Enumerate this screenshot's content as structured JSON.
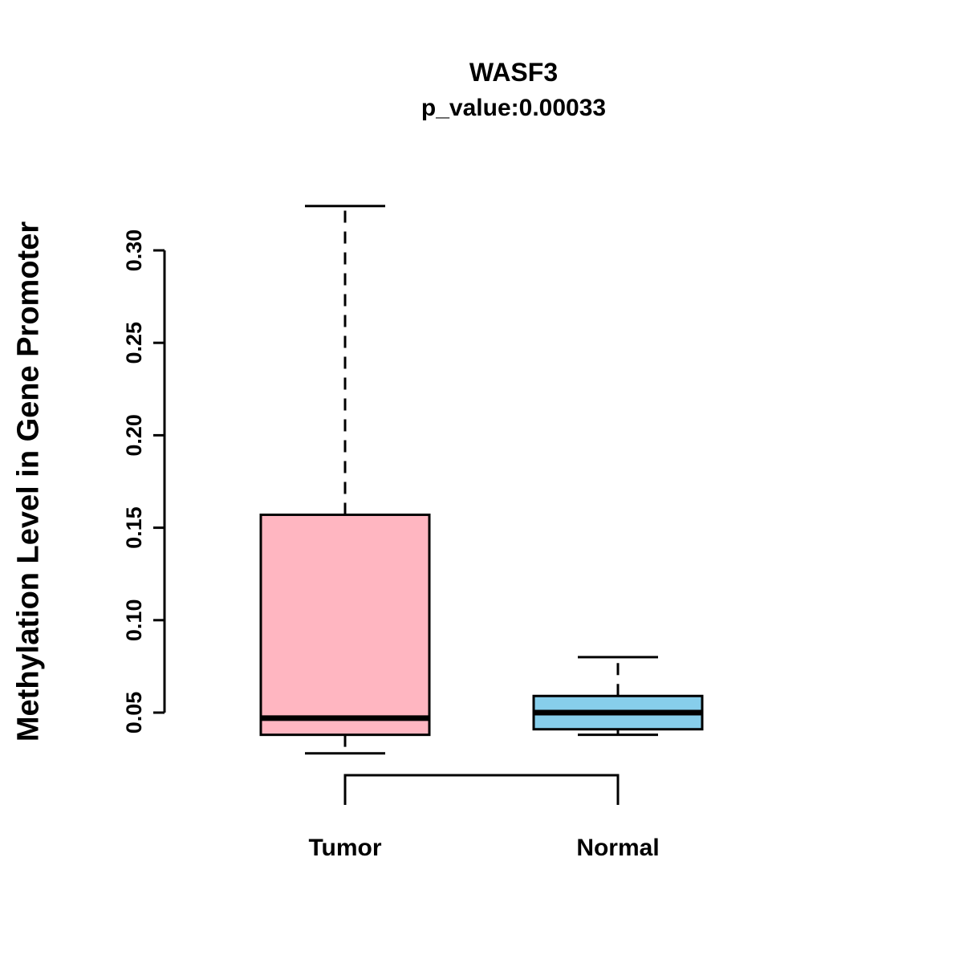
{
  "chart": {
    "title": "WASF3",
    "subtitle": "p_value:0.00033",
    "ylabel": "Methylation Level in Gene Promoter"
  },
  "chart_data": {
    "type": "boxplot",
    "title": "WASF3",
    "subtitle": "p_value:0.00033",
    "xlabel": "",
    "ylabel": "Methylation Level in Gene Promoter",
    "categories": [
      "Tumor",
      "Normal"
    ],
    "y_ticks": [
      0.05,
      0.1,
      0.15,
      0.2,
      0.25,
      0.3
    ],
    "y_tick_labels": [
      "0.05",
      "0.10",
      "0.15",
      "0.20",
      "0.25",
      "0.30"
    ],
    "ylim": [
      0.022,
      0.335
    ],
    "grid": false,
    "legend": "none",
    "groups": [
      {
        "label": "Tumor",
        "color": "#FFB6C1",
        "lower_whisker": 0.028,
        "q1": 0.038,
        "median": 0.047,
        "q3": 0.157,
        "upper_whisker": 0.324
      },
      {
        "label": "Normal",
        "color": "#87CEEB",
        "lower_whisker": 0.038,
        "q1": 0.041,
        "median": 0.05,
        "q3": 0.059,
        "upper_whisker": 0.08
      }
    ],
    "comparison_bracket": {
      "between": [
        "Tumor",
        "Normal"
      ]
    },
    "annotation": "p_value:0.00033"
  }
}
